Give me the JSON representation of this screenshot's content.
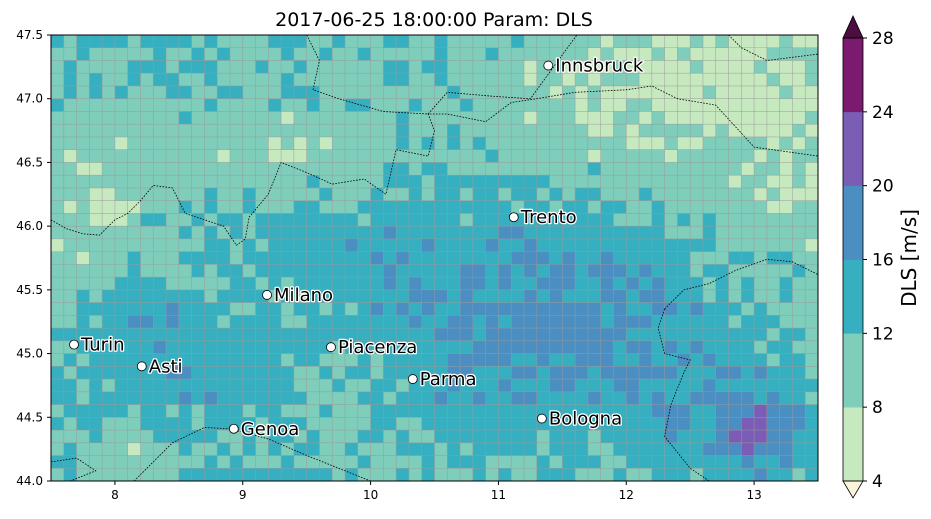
{
  "chart_data": {
    "type": "heatmap",
    "title": "2017-06-25 18:00:00 Param: DLS",
    "xlabel": "",
    "ylabel": "",
    "xlim": [
      7.5,
      13.5
    ],
    "ylim": [
      44.0,
      47.5
    ],
    "xticks": [
      8,
      9,
      10,
      11,
      12,
      13
    ],
    "yticks": [
      44.0,
      44.5,
      45.0,
      45.5,
      46.0,
      46.5,
      47.0,
      47.5
    ],
    "grid": true,
    "grid_cols": 60,
    "grid_rows": 35,
    "colorbar": {
      "label": "DLS  [m/s]",
      "levels": [
        4,
        8,
        12,
        16,
        20,
        24,
        28
      ],
      "colors": [
        "#c7e9c0",
        "#7fcdbb",
        "#36b0c0",
        "#4a8ec2",
        "#7b5db5",
        "#7b1a6e"
      ],
      "under_color": "#fbf4dc",
      "over_color": "#4a0e3f",
      "extend": "both"
    },
    "cities": [
      {
        "name": "Innsbruck",
        "lon": 11.39,
        "lat": 47.26
      },
      {
        "name": "Trento",
        "lon": 11.12,
        "lat": 46.07
      },
      {
        "name": "Milano",
        "lon": 9.19,
        "lat": 45.46
      },
      {
        "name": "Turin",
        "lon": 7.68,
        "lat": 45.07
      },
      {
        "name": "Asti",
        "lon": 8.21,
        "lat": 44.9
      },
      {
        "name": "Piacenza",
        "lon": 9.69,
        "lat": 45.05
      },
      {
        "name": "Parma",
        "lon": 10.33,
        "lat": 44.8
      },
      {
        "name": "Genoa",
        "lon": 8.93,
        "lat": 44.41
      },
      {
        "name": "Bologna",
        "lon": 11.34,
        "lat": 44.49
      }
    ]
  }
}
